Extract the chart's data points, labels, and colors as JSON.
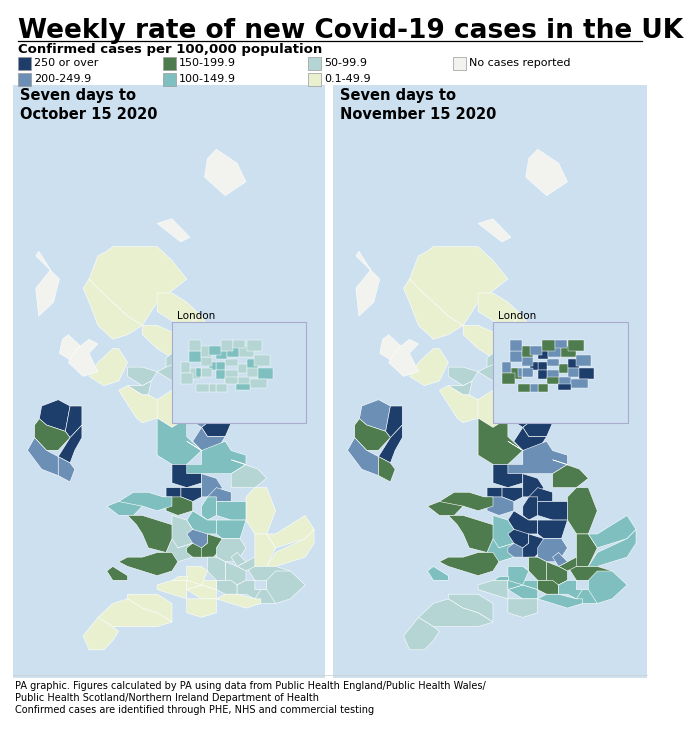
{
  "title": "Weekly rate of new Covid-19 cases in the UK",
  "subtitle": "Confirmed cases per 100,000 population",
  "legend_items": [
    {
      "label": "250 or over",
      "color": "#1d3d6b"
    },
    {
      "label": "200-249.9",
      "color": "#6b8fb5"
    },
    {
      "label": "150-199.9",
      "color": "#4e7c4e"
    },
    {
      "label": "100-149.9",
      "color": "#7fbfbf"
    },
    {
      "label": "50-99.9",
      "color": "#b5d5d5"
    },
    {
      "label": "0.1-49.9",
      "color": "#e8f0d0"
    },
    {
      "label": "No cases reported",
      "color": "#f2f2ee"
    }
  ],
  "map1_title": "Seven days to\nOctober 15 2020",
  "map2_title": "Seven days to\nNovember 15 2020",
  "background_color": "#cce0f0",
  "footer_line1": "PA graphic. Figures calculated by PA using data from Public Health England/Public Health Wales/",
  "footer_line2": "Public Health Scotland/Northern Ireland Department of Health",
  "footer_line3": "Confirmed cases are identified through PHE, NHS and commercial testing"
}
